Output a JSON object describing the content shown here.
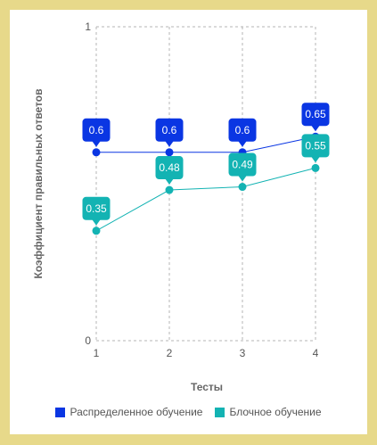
{
  "chart_data": {
    "type": "line",
    "title": "",
    "xlabel": "Тесты",
    "ylabel": "Коэффициент правильных ответов",
    "categories": [
      "1",
      "2",
      "3",
      "4"
    ],
    "ylim": [
      0,
      1
    ],
    "y_ticks": [
      "0",
      "1"
    ],
    "grid": true,
    "legend_position": "bottom",
    "series": [
      {
        "name": "Распределенное обучение",
        "color": "#0a36e3",
        "values": [
          0.6,
          0.6,
          0.6,
          0.65
        ]
      },
      {
        "name": "Блочное обучение",
        "color": "#13b3b3",
        "values": [
          0.35,
          0.48,
          0.49,
          0.55
        ]
      }
    ]
  }
}
